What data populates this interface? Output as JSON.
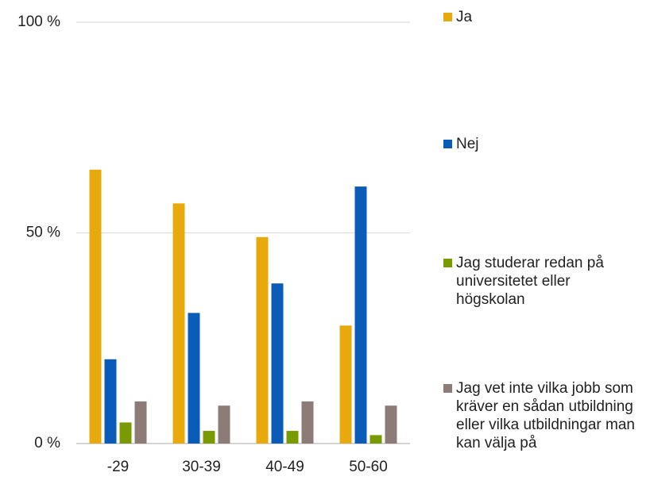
{
  "chart_data": {
    "type": "bar",
    "categories": [
      "-29",
      "30-39",
      "40-49",
      "50-60"
    ],
    "series": [
      {
        "name": "Ja",
        "color": "#e8a90d",
        "values": [
          65,
          57,
          49,
          28
        ]
      },
      {
        "name": "Nej",
        "color": "#0a5cb8",
        "values": [
          20,
          31,
          38,
          61
        ]
      },
      {
        "name": "Jag studerar redan på universitetet eller högskolan",
        "color": "#7a9a01",
        "values": [
          5,
          3,
          3,
          2
        ]
      },
      {
        "name": "Jag vet inte vilka jobb som kräver en sådan utbildning eller vilka utbildningar man kan välja på",
        "color": "#8c7b76",
        "values": [
          10,
          9,
          10,
          9
        ]
      }
    ],
    "ylim": [
      0,
      100
    ],
    "yticks": [
      {
        "value": 0,
        "label": "0 %"
      },
      {
        "value": 50,
        "label": "50 %"
      },
      {
        "value": 100,
        "label": "100 %"
      }
    ],
    "grid": true,
    "legend": "right"
  }
}
